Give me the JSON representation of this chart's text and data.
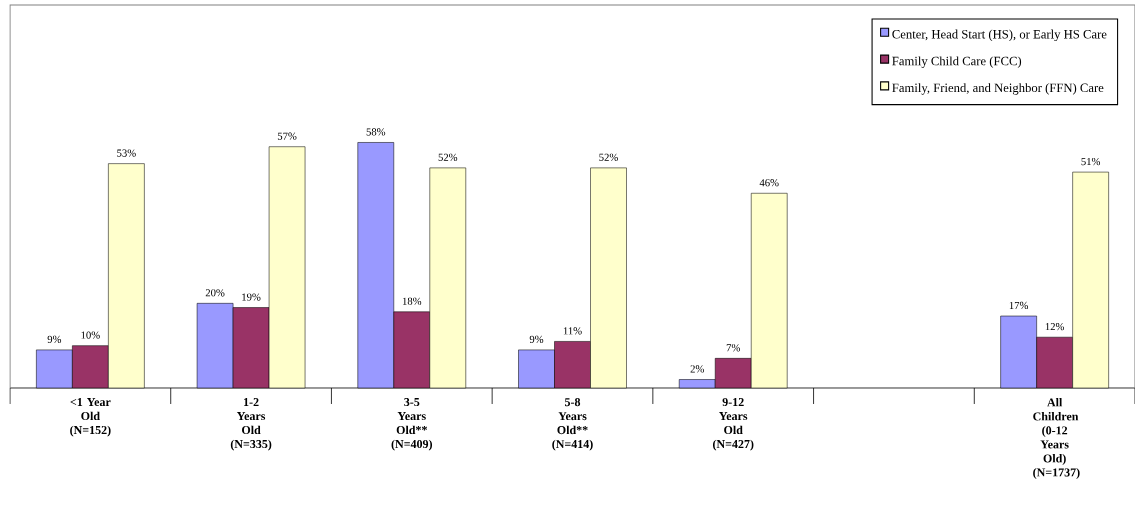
{
  "chart_data": {
    "type": "bar",
    "categories": [
      "<1 Year Old (N=152)",
      "1-2 Years Old (N=335)",
      "3-5 Years Old** (N=409)",
      "5-8 Years Old** (N=414)",
      "9-12 Years Old (N=427)",
      null,
      "All Children (0-12 Years Old) (N=1737)"
    ],
    "series": [
      {
        "name": "Center, Head Start (HS), or Early HS Care",
        "color": "#9999ff",
        "values": [
          9,
          20,
          58,
          9,
          2,
          null,
          17
        ],
        "value_labels": [
          "9%",
          "20%",
          "58%",
          "9%",
          "2%",
          null,
          "17%"
        ]
      },
      {
        "name": "Family Child Care (FCC)",
        "color": "#993366",
        "values": [
          10,
          19,
          18,
          11,
          7,
          null,
          12
        ],
        "value_labels": [
          "10%",
          "19%",
          "18%",
          "11%",
          "7%",
          null,
          "12%"
        ]
      },
      {
        "name": "Family, Friend, and Neighbor (FFN) Care",
        "color": "#ffffcc",
        "values": [
          53,
          57,
          52,
          52,
          46,
          null,
          51
        ],
        "value_labels": [
          "53%",
          "57%",
          "52%",
          "52%",
          "46%",
          null,
          "51%"
        ]
      }
    ],
    "legend": "top right"
  }
}
